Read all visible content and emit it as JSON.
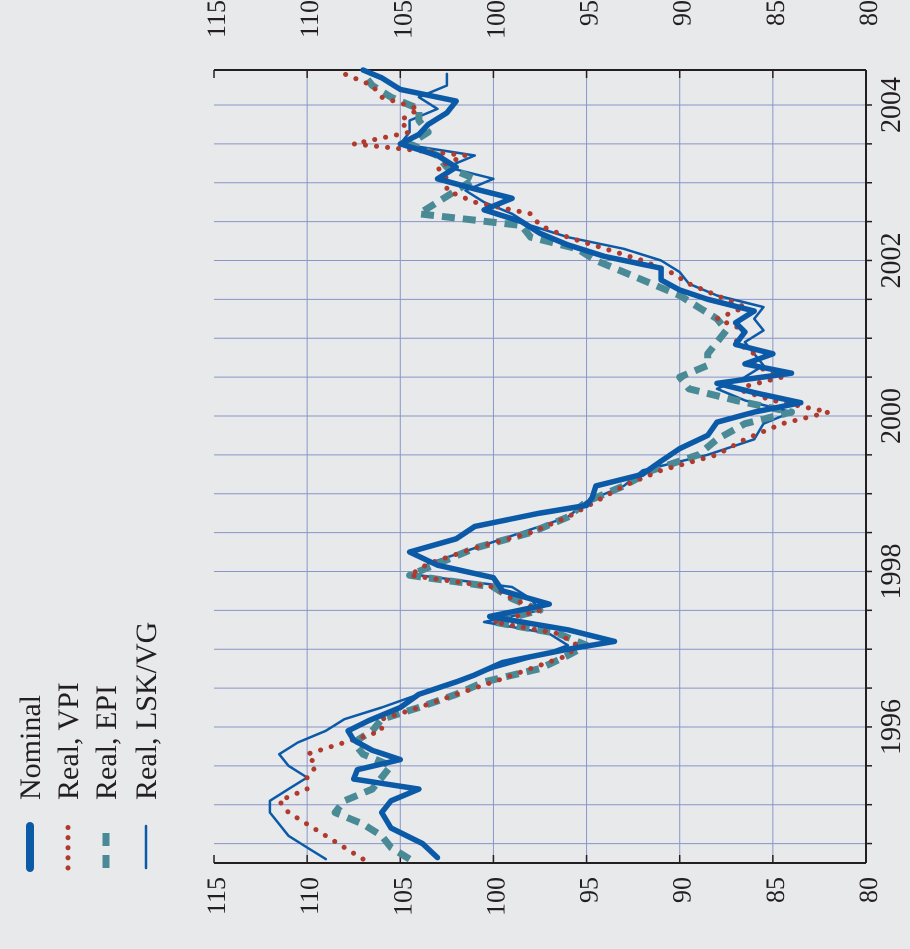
{
  "chart_data": {
    "type": "line",
    "title": "",
    "xlabel": "",
    "ylabel": "",
    "rotation": "chart rotated 90 degrees clockwise",
    "x_ticks": [
      1996,
      1998,
      2000,
      2002,
      2004
    ],
    "x_range": [
      1994.25,
      2004.45
    ],
    "ylim": [
      80,
      115
    ],
    "y_ticks": [
      80,
      85,
      90,
      95,
      100,
      105,
      110,
      115
    ],
    "grid": true,
    "legend_position": "top-left",
    "background": "#e8e9ea",
    "series": [
      {
        "name": "Nominal",
        "style": "solid-thick",
        "color": "#0b5aa8",
        "x": [
          1994.32,
          1994.5,
          1994.7,
          1994.9,
          1995.05,
          1995.2,
          1995.33,
          1995.45,
          1995.58,
          1995.7,
          1995.83,
          1995.95,
          1996.08,
          1996.25,
          1996.42,
          1996.58,
          1996.67,
          1996.83,
          1997.0,
          1997.1,
          1997.25,
          1997.42,
          1997.58,
          1997.75,
          1997.92,
          1998.08,
          1998.25,
          1998.42,
          1998.58,
          1998.75,
          1998.85,
          1998.95,
          1999.1,
          1999.25,
          1999.42,
          1999.58,
          1999.75,
          1999.92,
          2000.05,
          2000.17,
          2000.3,
          2000.42,
          2000.55,
          2000.67,
          2000.8,
          2000.92,
          2001.08,
          2001.2,
          2001.35,
          2001.5,
          2001.62,
          2001.75,
          2001.9,
          2002.05,
          2002.2,
          2002.35,
          2002.5,
          2002.65,
          2002.8,
          2002.92,
          2003.05,
          2003.2,
          2003.35,
          2003.5,
          2003.62,
          2003.75,
          2003.9,
          2004.05,
          2004.2,
          2004.35,
          2004.45
        ],
        "y": [
          103,
          103.8,
          105.5,
          106,
          105.5,
          104,
          107.5,
          107.3,
          105,
          106.5,
          107.5,
          107.8,
          106.7,
          105,
          104,
          102,
          101,
          99.5,
          96,
          93.5,
          96,
          100.2,
          97,
          99.5,
          100,
          103,
          104.5,
          102,
          101,
          97.5,
          95,
          94.7,
          94.5,
          92,
          91,
          90,
          88.5,
          88,
          86,
          83.5,
          86,
          88,
          84,
          86.5,
          85,
          87,
          86.5,
          87,
          86,
          88.5,
          90,
          91,
          91,
          94,
          96,
          97.5,
          98.5,
          100.5,
          99,
          101,
          103,
          102,
          103,
          105,
          104,
          103.5,
          102.5,
          102,
          105,
          106,
          107
        ]
      },
      {
        "name": "Real, VPI",
        "style": "dotted",
        "color": "#b03a2e",
        "x": [
          1994.3,
          1994.45,
          1994.6,
          1994.75,
          1994.9,
          1995.05,
          1995.2,
          1995.35,
          1995.5,
          1995.65,
          1995.8,
          1995.95,
          1996.1,
          1996.25,
          1996.42,
          1996.58,
          1996.75,
          1996.92,
          1997.05,
          1997.2,
          1997.35,
          1997.5,
          1997.65,
          1997.8,
          1997.95,
          1998.1,
          1998.3,
          1998.5,
          1998.7,
          1998.9,
          1999.1,
          1999.3,
          1999.5,
          1999.7,
          1999.9,
          2000.05,
          2000.2,
          2000.35,
          2000.5,
          2000.65,
          2000.8,
          2000.95,
          2001.1,
          2001.25,
          2001.4,
          2001.55,
          2001.7,
          2001.85,
          2002.0,
          2002.15,
          2002.3,
          2002.45,
          2002.6,
          2002.75,
          2002.9,
          2003.05,
          2003.2,
          2003.35,
          2003.5,
          2003.65,
          2003.8,
          2003.95,
          2004.1,
          2004.25,
          2004.4
        ],
        "y": [
          107,
          108,
          109,
          110,
          111,
          111.5,
          110,
          110,
          109.5,
          110,
          108,
          106,
          106,
          104,
          102,
          100,
          98,
          96,
          95.5,
          96.5,
          100,
          97.5,
          99,
          100,
          104.5,
          103.5,
          101,
          98,
          96,
          94.5,
          93,
          91,
          88,
          86.5,
          84.5,
          82,
          85,
          87,
          84.5,
          86,
          86,
          87,
          86.5,
          88,
          86.5,
          88,
          89.5,
          90.5,
          92,
          94,
          96,
          97.5,
          98,
          101,
          102.5,
          102.5,
          103,
          101.5,
          107.5,
          104.5,
          105,
          104,
          106,
          106.5,
          108
        ]
      },
      {
        "name": "Real, EPI",
        "style": "dashed",
        "color": "#4a8a96",
        "x": [
          1994.3,
          1994.45,
          1994.6,
          1994.75,
          1994.9,
          1995.05,
          1995.2,
          1995.35,
          1995.5,
          1995.65,
          1995.8,
          1995.95,
          1996.1,
          1996.25,
          1996.42,
          1996.58,
          1996.75,
          1996.92,
          1997.05,
          1997.2,
          1997.35,
          1997.5,
          1997.65,
          1997.8,
          1997.95,
          1998.1,
          1998.3,
          1998.5,
          1998.7,
          1998.9,
          1999.1,
          1999.3,
          1999.5,
          1999.7,
          1999.9,
          2000.05,
          2000.2,
          2000.35,
          2000.5,
          2000.65,
          2000.8,
          2000.95,
          2001.1,
          2001.25,
          2001.4,
          2001.55,
          2001.7,
          2001.85,
          2002.0,
          2002.15,
          2002.3,
          2002.45,
          2002.6,
          2002.75,
          2002.9,
          2003.05,
          2003.2,
          2003.35,
          2003.5,
          2003.65,
          2003.8,
          2003.95,
          2004.1,
          2004.25,
          2004.4
        ],
        "y": [
          104.5,
          105.5,
          106,
          107,
          108.5,
          108,
          106.5,
          106,
          105.5,
          107,
          107.5,
          106.5,
          106,
          104,
          102,
          100.5,
          97.5,
          96,
          95,
          96.5,
          100,
          97.5,
          99,
          100,
          104.5,
          103,
          101,
          98,
          96,
          95,
          93,
          91.5,
          89,
          88,
          86.5,
          84,
          87,
          89.5,
          90,
          88.5,
          88.5,
          88,
          87.5,
          88,
          89,
          90,
          91.5,
          93,
          94.5,
          95.5,
          98,
          98.5,
          104,
          103,
          102,
          101,
          102.5,
          103,
          104.5,
          103.5,
          104,
          104,
          105.5,
          106.5,
          107
        ]
      },
      {
        "name": "Real, LSK/VG",
        "style": "solid-thin",
        "color": "#0b5aa8",
        "x": [
          1994.3,
          1994.45,
          1994.6,
          1994.75,
          1994.9,
          1995.05,
          1995.2,
          1995.35,
          1995.5,
          1995.65,
          1995.8,
          1995.95,
          1996.1,
          1996.25,
          1996.42,
          1996.58,
          1996.75,
          1996.92,
          1997.05,
          1997.2,
          1997.35,
          1997.5,
          1997.65,
          1997.8,
          1997.95,
          1998.1,
          1998.3,
          1998.5,
          1998.7,
          1998.9,
          1999.1,
          1999.3,
          1999.5,
          1999.7,
          1999.9,
          2000.05,
          2000.2,
          2000.35,
          2000.5,
          2000.65,
          2000.8,
          2000.95,
          2001.1,
          2001.25,
          2001.4,
          2001.55,
          2001.7,
          2001.85,
          2002.0,
          2002.15,
          2002.3,
          2002.45,
          2002.6,
          2002.75,
          2002.9,
          2003.05,
          2003.2,
          2003.35,
          2003.5,
          2003.65,
          2003.8,
          2003.95,
          2004.1,
          2004.25,
          2004.4
        ],
        "y": [
          109,
          110,
          111,
          111.5,
          112,
          112,
          111,
          110,
          111,
          111.5,
          110.5,
          109,
          108,
          106,
          104,
          102,
          100,
          97.5,
          96,
          97,
          100.5,
          97.5,
          98,
          99,
          104,
          103.5,
          101,
          98.5,
          96,
          95,
          93,
          92,
          88.5,
          86,
          85.5,
          84,
          86.5,
          88,
          86.5,
          85.5,
          86,
          86.5,
          85.5,
          86,
          85.5,
          88,
          89.5,
          90,
          91,
          93,
          96,
          98,
          99,
          100.5,
          101.5,
          100,
          102.5,
          101,
          105,
          104.5,
          104.5,
          103,
          104,
          102.5,
          102.5
        ]
      }
    ]
  }
}
